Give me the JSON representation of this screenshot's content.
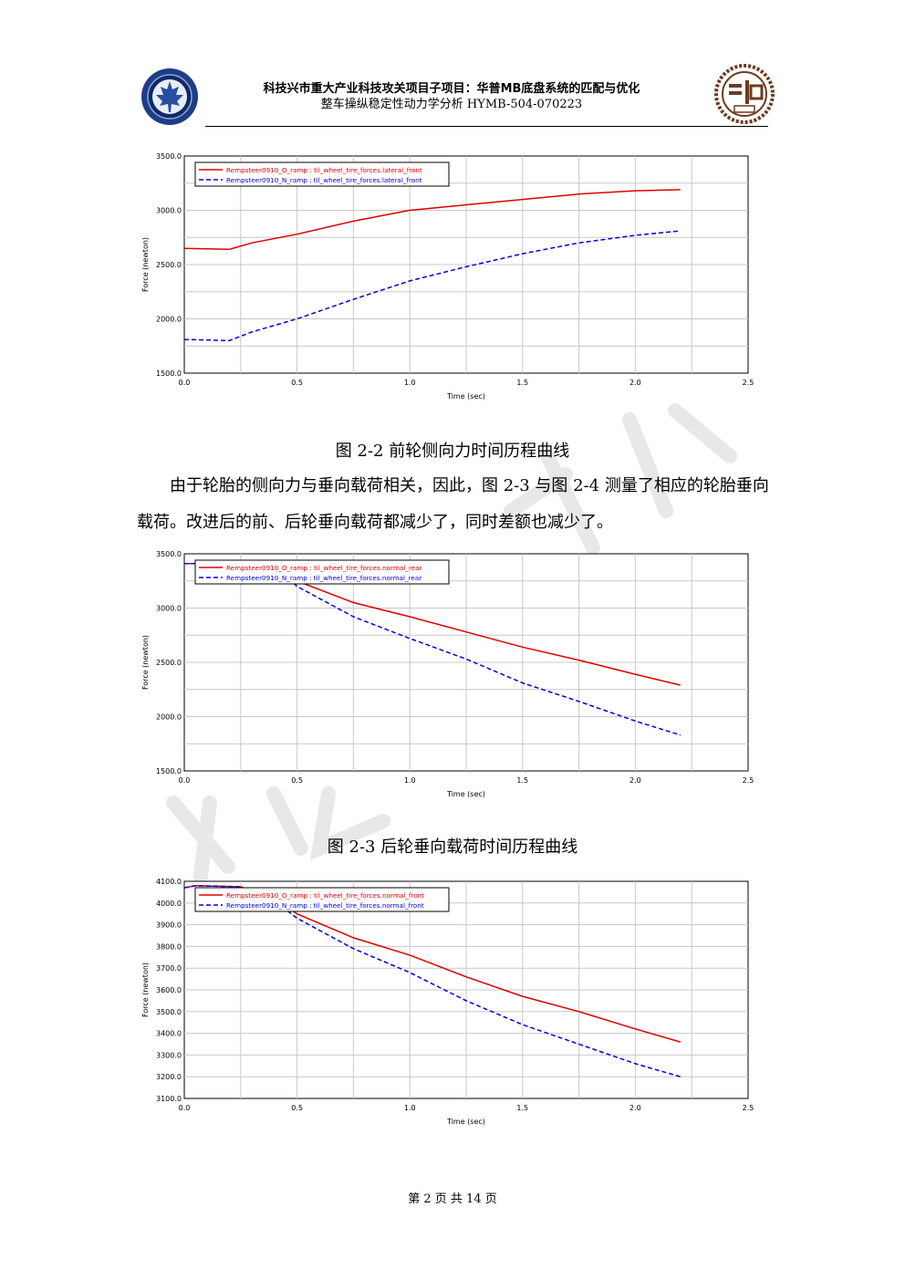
{
  "header": {
    "title_line1": "科技兴市重大产业科技攻关项目子项目：华普MB底盘系统的匹配与优化",
    "title_line2": "整车操纵稳定性动力学分析 HYMB-504-070223"
  },
  "captions": {
    "fig_2_2": "图 2-2 前轮侧向力时间历程曲线",
    "fig_2_3": "图 2-3 后轮垂向载荷时间历程曲线"
  },
  "paragraph": "由于轮胎的侧向力与垂向载荷相关，因此，图 2-3 与图 2-4 测量了相应的轮胎垂向载荷。改进后的前、后轮垂向载荷都减少了，同时差额也减少了。",
  "footer": {
    "page": "第 2 页 共 14 页"
  },
  "colors": {
    "series_o": "#e00000",
    "series_n": "#0000e0",
    "grid": "#c8c8c8"
  },
  "chart_data": [
    {
      "type": "line",
      "xlabel": "Time (sec)",
      "ylabel": "Force (newton)",
      "xlim": [
        0.0,
        2.5
      ],
      "ylim": [
        1500.0,
        3500.0
      ],
      "xticks": [
        "0.0",
        "0.5",
        "1.0",
        "1.5",
        "2.0",
        "2.5"
      ],
      "yticks": [
        "1500.0",
        "2000.0",
        "2500.0",
        "3000.0",
        "3500.0"
      ],
      "ytick_values": [
        1500,
        2000,
        2500,
        3000,
        3500
      ],
      "grid": true,
      "legend": "top-left",
      "series": [
        {
          "name": "Rempsteer0910_O_ramp : til_wheel_tire_forces.lateral_front",
          "style": "solid",
          "x": [
            0.0,
            0.2,
            0.3,
            0.5,
            0.75,
            1.0,
            1.25,
            1.5,
            1.75,
            2.0,
            2.2
          ],
          "y": [
            2650,
            2640,
            2700,
            2780,
            2900,
            3000,
            3050,
            3100,
            3150,
            3180,
            3190
          ]
        },
        {
          "name": "Rempsteer0910_N_ramp : til_wheel_tire_forces.lateral_front",
          "style": "dashed",
          "x": [
            0.0,
            0.2,
            0.3,
            0.5,
            0.75,
            1.0,
            1.25,
            1.5,
            1.75,
            2.0,
            2.2
          ],
          "y": [
            1810,
            1800,
            1880,
            2000,
            2180,
            2350,
            2480,
            2600,
            2700,
            2770,
            2810
          ]
        }
      ]
    },
    {
      "type": "line",
      "xlabel": "Time (sec)",
      "ylabel": "Force (newton)",
      "xlim": [
        0.0,
        2.5
      ],
      "ylim": [
        1500.0,
        3500.0
      ],
      "xticks": [
        "0.0",
        "0.5",
        "1.0",
        "1.5",
        "2.0",
        "2.5"
      ],
      "yticks": [
        "1500.0",
        "2000.0",
        "2500.0",
        "3000.0",
        "3500.0"
      ],
      "ytick_values": [
        1500,
        2000,
        2500,
        3000,
        3500
      ],
      "grid": true,
      "legend": "top-left",
      "series": [
        {
          "name": "Rempsteer0910_O_ramp : til_wheel_tire_forces.normal_rear",
          "style": "solid",
          "x": [
            0.0,
            0.2,
            0.4,
            0.5,
            0.75,
            1.0,
            1.25,
            1.5,
            1.75,
            2.0,
            2.2
          ],
          "y": [
            3410,
            3410,
            3400,
            3250,
            3050,
            2920,
            2780,
            2640,
            2520,
            2390,
            2290
          ]
        },
        {
          "name": "Rempsteer0910_N_ramp : til_wheel_tire_forces.normal_rear",
          "style": "dashed",
          "x": [
            0.0,
            0.2,
            0.4,
            0.5,
            0.75,
            1.0,
            1.25,
            1.5,
            1.75,
            2.0,
            2.2
          ],
          "y": [
            3410,
            3410,
            3400,
            3200,
            2920,
            2720,
            2530,
            2310,
            2140,
            1960,
            1830
          ]
        }
      ]
    },
    {
      "type": "line",
      "xlabel": "Time (sec)",
      "ylabel": "Force (newton)",
      "xlim": [
        0.0,
        2.5
      ],
      "ylim": [
        3100.0,
        4100.0
      ],
      "xticks": [
        "0.0",
        "0.5",
        "1.0",
        "1.5",
        "2.0",
        "2.5"
      ],
      "yticks": [
        "3100.0",
        "3200.0",
        "3300.0",
        "3400.0",
        "3500.0",
        "3600.0",
        "3700.0",
        "3800.0",
        "3900.0",
        "4000.0",
        "4100.0"
      ],
      "ytick_values": [
        3100,
        3200,
        3300,
        3400,
        3500,
        3600,
        3700,
        3800,
        3900,
        4000,
        4100
      ],
      "grid": true,
      "legend": "top-left",
      "series": [
        {
          "name": "Rempsteer0910_O_ramp : til_wheel_tire_forces.normal_front",
          "style": "solid",
          "x": [
            0.0,
            0.05,
            0.25,
            0.4,
            0.5,
            0.75,
            1.0,
            1.25,
            1.5,
            1.75,
            2.0,
            2.2
          ],
          "y": [
            4070,
            4080,
            4075,
            4020,
            3950,
            3840,
            3760,
            3660,
            3570,
            3500,
            3420,
            3360
          ]
        },
        {
          "name": "Rempsteer0910_N_ramp : til_wheel_tire_forces.normal_front",
          "style": "dashed",
          "x": [
            0.0,
            0.05,
            0.25,
            0.4,
            0.5,
            0.75,
            1.0,
            1.25,
            1.5,
            1.75,
            2.0,
            2.2
          ],
          "y": [
            4070,
            4080,
            4075,
            4010,
            3930,
            3790,
            3680,
            3550,
            3440,
            3350,
            3260,
            3200
          ]
        }
      ]
    }
  ]
}
